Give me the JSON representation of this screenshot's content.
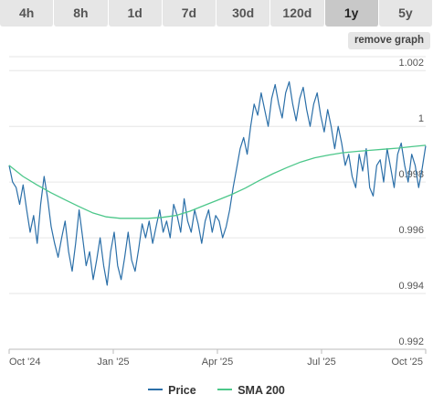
{
  "tabs": [
    {
      "label": "4h",
      "active": false
    },
    {
      "label": "8h",
      "active": false
    },
    {
      "label": "1d",
      "active": false
    },
    {
      "label": "7d",
      "active": false
    },
    {
      "label": "30d",
      "active": false
    },
    {
      "label": "120d",
      "active": false
    },
    {
      "label": "1y",
      "active": true
    },
    {
      "label": "5y",
      "active": false
    }
  ],
  "remove_graph_label": "remove graph",
  "colors": {
    "price": "#2b6fa8",
    "sma": "#4cc78a",
    "grid": "#e6e6e6",
    "text": "#555555"
  },
  "chart_data": {
    "type": "line",
    "x_tick_labels": [
      "Oct '24",
      "Jan '25",
      "Apr '25",
      "Jul '25",
      "Oct '25"
    ],
    "y_ticks": [
      0.992,
      0.994,
      0.996,
      0.998,
      1,
      1.002
    ],
    "y_tick_labels": [
      "0.992",
      "0.994",
      "0.996",
      "0.998",
      "1",
      "1.002"
    ],
    "ylim": [
      0.992,
      1.0025
    ],
    "grid": "horizontal",
    "legend_position": "bottom-center",
    "series": [
      {
        "name": "Price",
        "values": [
          0.9986,
          0.998,
          0.9978,
          0.9972,
          0.9979,
          0.997,
          0.9962,
          0.9968,
          0.9958,
          0.9972,
          0.9982,
          0.9974,
          0.9964,
          0.9958,
          0.9953,
          0.996,
          0.9966,
          0.9955,
          0.9948,
          0.9958,
          0.997,
          0.996,
          0.995,
          0.9955,
          0.9945,
          0.9952,
          0.996,
          0.995,
          0.9943,
          0.9955,
          0.9962,
          0.995,
          0.9945,
          0.9953,
          0.9962,
          0.9952,
          0.9948,
          0.9956,
          0.9965,
          0.996,
          0.9966,
          0.9958,
          0.9964,
          0.997,
          0.9962,
          0.9966,
          0.996,
          0.9972,
          0.9968,
          0.9962,
          0.9974,
          0.9966,
          0.9962,
          0.997,
          0.9965,
          0.9958,
          0.9966,
          0.997,
          0.9962,
          0.9968,
          0.9966,
          0.996,
          0.9964,
          0.997,
          0.9978,
          0.9985,
          0.9992,
          0.9996,
          0.999,
          1.0,
          1.0008,
          1.0004,
          1.0012,
          1.0006,
          1.0,
          1.001,
          1.0015,
          1.0008,
          1.0003,
          1.0012,
          1.0016,
          1.0008,
          1.0002,
          1.001,
          1.0014,
          1.0006,
          1.0,
          1.0008,
          1.0012,
          1.0004,
          0.9998,
          1.0006,
          1.0,
          0.9992,
          1.0,
          0.9994,
          0.9986,
          0.999,
          0.9982,
          0.9978,
          0.999,
          0.9984,
          0.9992,
          0.9978,
          0.9975,
          0.9986,
          0.9988,
          0.998,
          0.9992,
          0.9985,
          0.9978,
          0.999,
          0.9994,
          0.9986,
          0.998,
          0.999,
          0.9986,
          0.9978,
          0.9985,
          0.9993
        ]
      },
      {
        "name": "SMA 200",
        "values": [
          0.9986,
          0.9982,
          0.9979,
          0.99762,
          0.99737,
          0.99713,
          0.9969,
          0.99675,
          0.9967,
          0.9967,
          0.9967,
          0.99673,
          0.9968,
          0.99695,
          0.99715,
          0.99735,
          0.99755,
          0.99778,
          0.99805,
          0.9983,
          0.99852,
          0.99872,
          0.99887,
          0.99897,
          0.99905,
          0.9991,
          0.99914,
          0.99918,
          0.99922,
          0.99927,
          0.99932
        ]
      }
    ]
  }
}
